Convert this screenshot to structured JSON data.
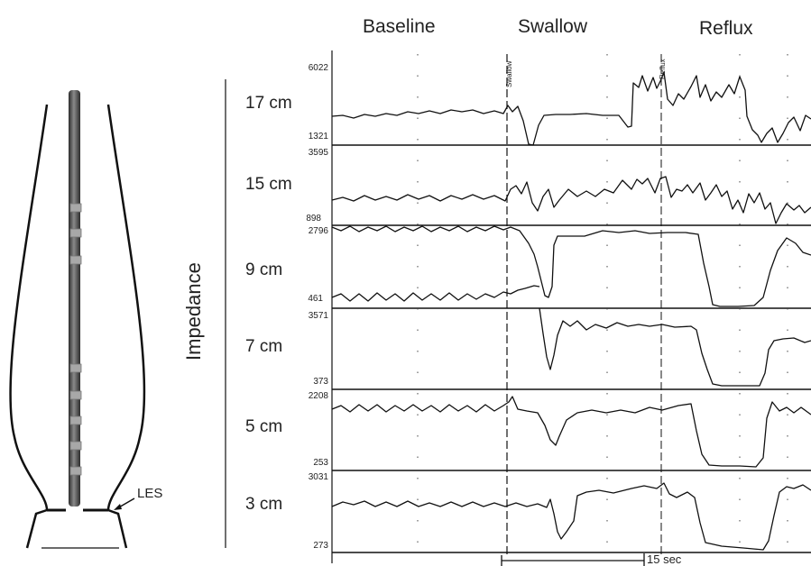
{
  "headers": {
    "baseline": "Baseline",
    "swallow": "Swallow",
    "reflux": "Reflux"
  },
  "axis_label": "Impedance",
  "markers": {
    "swallow": "Swallow",
    "reflux": "Reflux"
  },
  "les_label": "LES",
  "scale_label": "15 sec",
  "channels": [
    {
      "cm": "17 cm",
      "max": "6022",
      "min": "1321"
    },
    {
      "cm": "15 cm",
      "max": "3595",
      "min": "898"
    },
    {
      "cm": "9 cm",
      "max": "2796",
      "min": "461"
    },
    {
      "cm": "7 cm",
      "max": "3571",
      "min": "373"
    },
    {
      "cm": "5 cm",
      "max": "2208",
      "min": "253"
    },
    {
      "cm": "3 cm",
      "max": "3031",
      "min": "273"
    }
  ],
  "colors": {
    "trace": "#111111",
    "catheter": "#4a4a4a",
    "sensor": "#9a9a9a"
  }
}
